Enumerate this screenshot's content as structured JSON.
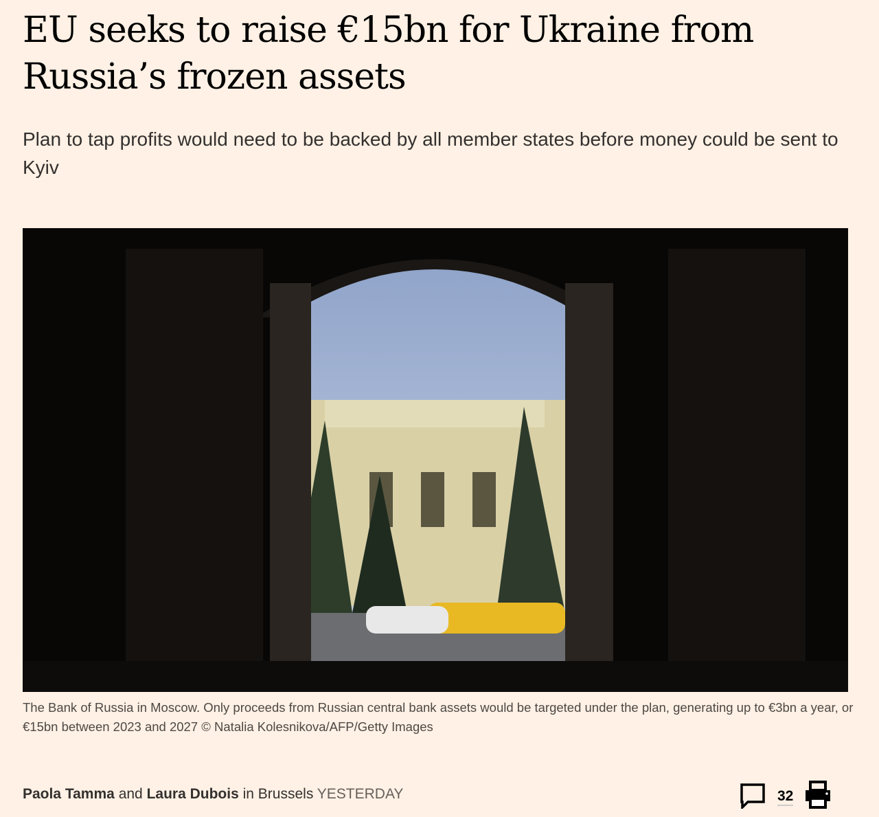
{
  "article": {
    "title": "EU seeks to raise €15bn for Ukraine from Russia’s frozen assets",
    "standfirst": "Plan to tap profits would need to be backed by all member states before money could be sent to Kyiv",
    "image": {
      "caption": "The Bank of Russia in Moscow. Only proceeds from Russian central bank assets would be targeted under the plan, generating up to €3bn a year, or €15bn between 2023 and 2027 © Natalia Kolesnikova/AFP/Getty Images"
    },
    "byline": {
      "author1": "Paola Tamma",
      "and": "and",
      "author2": "Laura Dubois",
      "location": "in Brussels",
      "date": "YESTERDAY"
    },
    "tools": {
      "comments_icon": "speech-bubble-icon",
      "comment_count": "32",
      "print_icon": "printer-icon"
    }
  },
  "colors": {
    "background": "#FFF1E5",
    "text": "#33302E"
  }
}
